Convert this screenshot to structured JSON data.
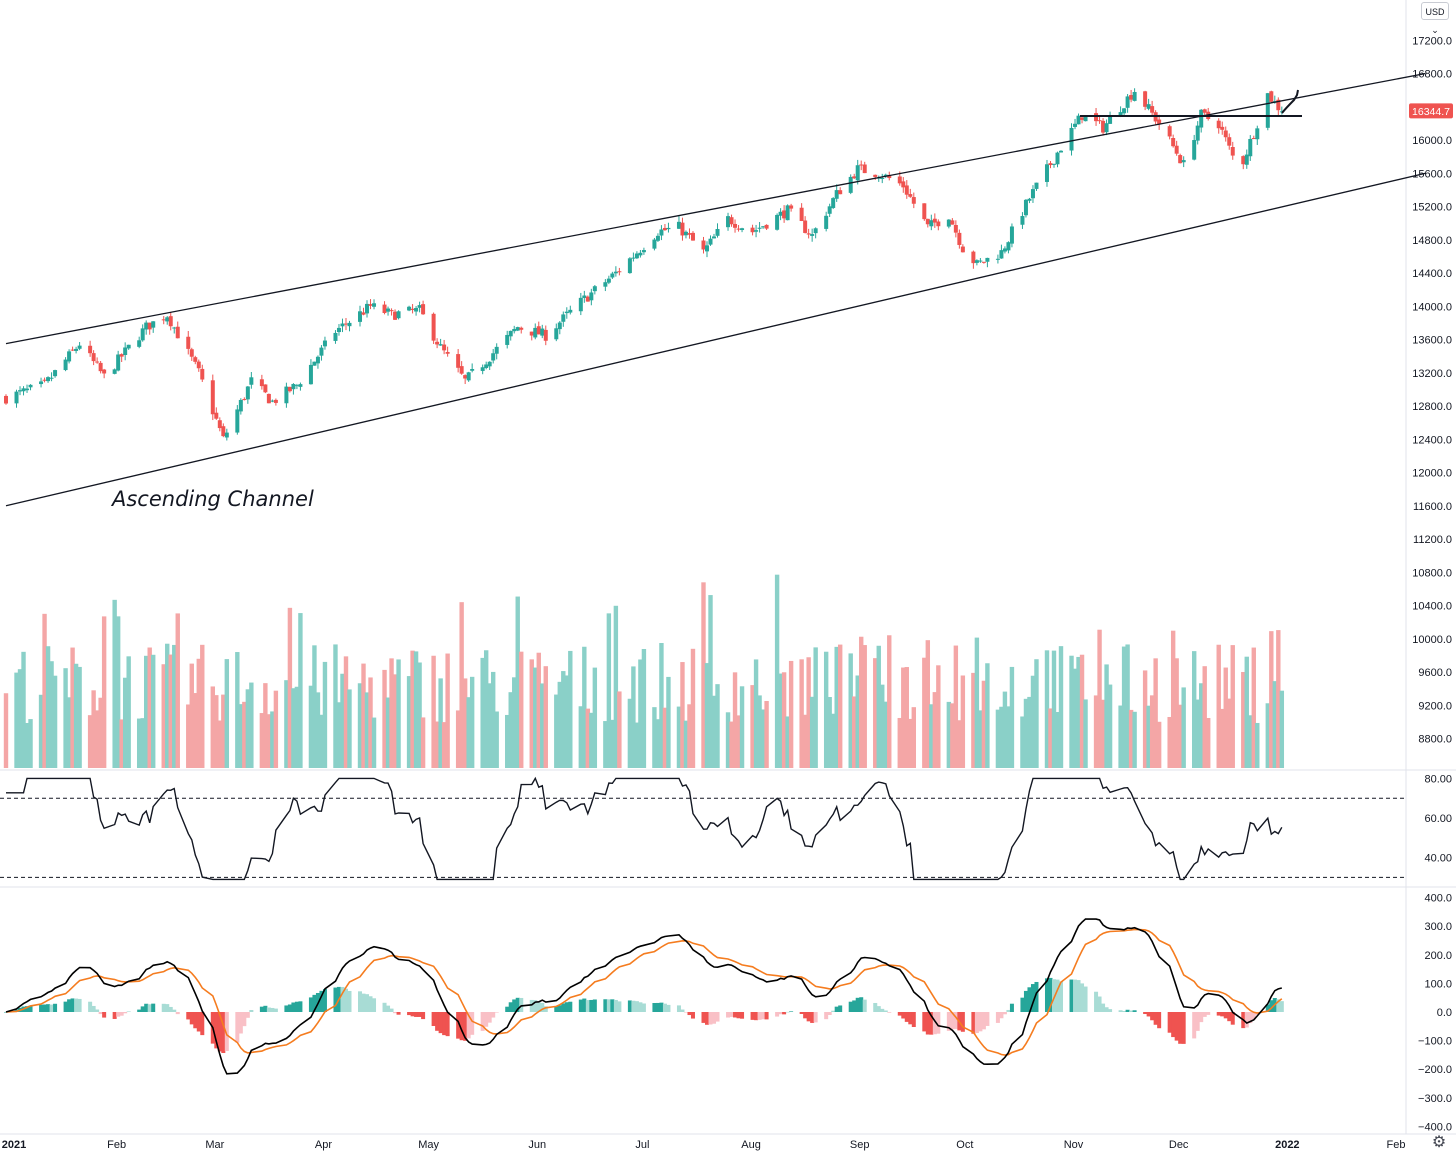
{
  "currency_selector": {
    "label": "USD",
    "icon": "chevron-down-icon"
  },
  "settings": {
    "icon": "gear-icon"
  },
  "colors": {
    "up_candle": "#26a69a",
    "down_candle": "#ef5350",
    "up_volume": "#8ad0c8",
    "down_volume": "#f4a6a6",
    "macd_line": "#000000",
    "signal_line": "#f57c1f",
    "hist_pos_strong": "#26a69a",
    "hist_pos_weak": "#a8dcd5",
    "hist_neg_strong": "#ef5350",
    "hist_neg_weak": "#f9c0c6",
    "price_badge": "#ef5350"
  },
  "chart_data": {
    "type": "candlestick",
    "annotation": "Ascending Channel",
    "last_price_label": "16344.7",
    "time_axis": {
      "labels": [
        "2021",
        "Feb",
        "Mar",
        "Apr",
        "May",
        "Jun",
        "Jul",
        "Aug",
        "Sep",
        "Oct",
        "Nov",
        "Dec",
        "2022",
        "Feb"
      ],
      "bold": [
        "2021",
        "2022"
      ]
    },
    "price_axis": {
      "ticks": [
        "17200.0",
        "16800.0",
        "16400.0",
        "16000.0",
        "15600.0",
        "15200.0",
        "14800.0",
        "14400.0",
        "14000.0",
        "13600.0",
        "13200.0",
        "12800.0",
        "12400.0",
        "12000.0",
        "11600.0",
        "11200.0",
        "10800.0",
        "10400.0",
        "10000.0",
        "9600.0",
        "9200.0",
        "8800.0"
      ]
    },
    "price_anchors": [
      {
        "date": "2021-01-01",
        "close": 12900
      },
      {
        "date": "2021-01-12",
        "close": 13050
      },
      {
        "date": "2021-01-22",
        "close": 13550
      },
      {
        "date": "2021-01-29",
        "close": 13150
      },
      {
        "date": "2021-02-10",
        "close": 13750
      },
      {
        "date": "2021-02-16",
        "close": 13900
      },
      {
        "date": "2021-02-25",
        "close": 13200
      },
      {
        "date": "2021-03-04",
        "close": 12400
      },
      {
        "date": "2021-03-12",
        "close": 13100
      },
      {
        "date": "2021-03-18",
        "close": 12850
      },
      {
        "date": "2021-03-25",
        "close": 13050
      },
      {
        "date": "2021-04-05",
        "close": 13700
      },
      {
        "date": "2021-04-15",
        "close": 14000
      },
      {
        "date": "2021-04-21",
        "close": 13900
      },
      {
        "date": "2021-04-29",
        "close": 13950
      },
      {
        "date": "2021-05-05",
        "close": 13500
      },
      {
        "date": "2021-05-12",
        "close": 13100
      },
      {
        "date": "2021-05-18",
        "close": 13350
      },
      {
        "date": "2021-05-27",
        "close": 13750
      },
      {
        "date": "2021-06-04",
        "close": 13650
      },
      {
        "date": "2021-06-14",
        "close": 14050
      },
      {
        "date": "2021-06-24",
        "close": 14400
      },
      {
        "date": "2021-07-06",
        "close": 14900
      },
      {
        "date": "2021-07-12",
        "close": 14950
      },
      {
        "date": "2021-07-19",
        "close": 14650
      },
      {
        "date": "2021-07-26",
        "close": 15050
      },
      {
        "date": "2021-08-02",
        "close": 14900
      },
      {
        "date": "2021-08-12",
        "close": 15150
      },
      {
        "date": "2021-08-19",
        "close": 14850
      },
      {
        "date": "2021-08-26",
        "close": 15350
      },
      {
        "date": "2021-09-01",
        "close": 15650
      },
      {
        "date": "2021-09-07",
        "close": 15600
      },
      {
        "date": "2021-09-14",
        "close": 15450
      },
      {
        "date": "2021-09-21",
        "close": 14950
      },
      {
        "date": "2021-09-27",
        "close": 15100
      },
      {
        "date": "2021-10-01",
        "close": 14700
      },
      {
        "date": "2021-10-05",
        "close": 14500
      },
      {
        "date": "2021-10-12",
        "close": 14650
      },
      {
        "date": "2021-10-20",
        "close": 15300
      },
      {
        "date": "2021-10-28",
        "close": 15850
      },
      {
        "date": "2021-11-04",
        "close": 16300
      },
      {
        "date": "2021-11-10",
        "close": 16150
      },
      {
        "date": "2021-11-17",
        "close": 16500
      },
      {
        "date": "2021-11-19",
        "close": 16600
      },
      {
        "date": "2021-11-26",
        "close": 16200
      },
      {
        "date": "2021-12-01",
        "close": 15850
      },
      {
        "date": "2021-12-03",
        "close": 15700
      },
      {
        "date": "2021-12-08",
        "close": 16300
      },
      {
        "date": "2021-12-13",
        "close": 16200
      },
      {
        "date": "2021-12-17",
        "close": 15800
      },
      {
        "date": "2021-12-20",
        "close": 15750
      },
      {
        "date": "2021-12-27",
        "close": 16550
      },
      {
        "date": "2021-12-31",
        "close": 16344.7
      }
    ],
    "channel": {
      "upper": [
        {
          "date": "2021-01-01",
          "price": 13550
        },
        {
          "date": "2022-02-10",
          "price": 16800
        }
      ],
      "lower": [
        {
          "date": "2021-01-01",
          "price": 11600
        },
        {
          "date": "2022-02-10",
          "price": 15600
        }
      ]
    },
    "rsi": {
      "ticks": [
        "80.00",
        "60.00",
        "40.00"
      ],
      "upper_band": 70,
      "lower_band": 30
    },
    "macd": {
      "ticks": [
        "400.0",
        "300.0",
        "200.0",
        "100.0",
        "0.0",
        "−100.0",
        "−200.0",
        "−300.0",
        "−400.0"
      ]
    }
  }
}
